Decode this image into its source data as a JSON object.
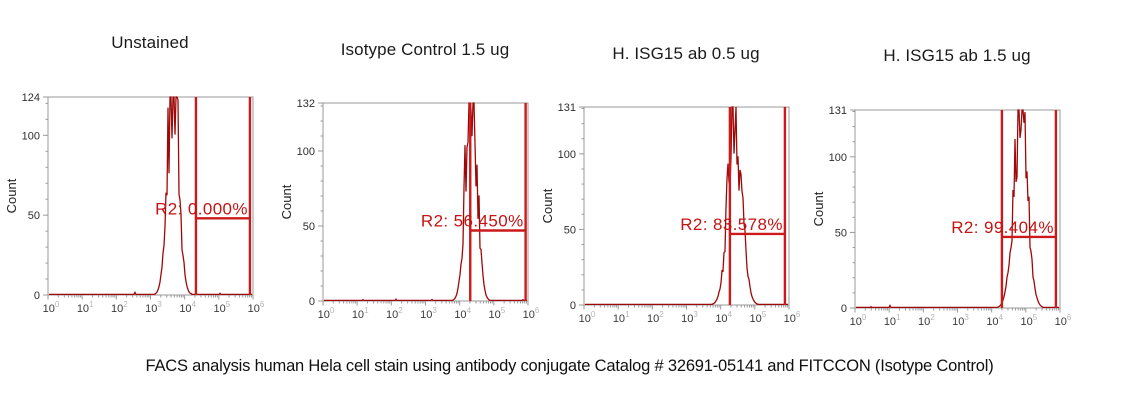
{
  "figure": {
    "caption": "FACS analysis human Hela cell stain using antibody conjugate Catalog # 32691-05141 and FITCCON (Isotype Control)"
  },
  "colors": {
    "histogram": "#9e0808",
    "gate": "#cc1a1a",
    "gate_text": "#c41414",
    "axis": "#9a9a9a",
    "tick_text": "#3a3a3a",
    "exponent_text": "#b5b5b5",
    "title_text": "#1b1b1b"
  },
  "chart_data": [
    {
      "type": "area",
      "title": "Unstained",
      "ylabel": "Count",
      "ymax": 124,
      "yticks": [
        0,
        50,
        100,
        124
      ],
      "x_scale": "log10",
      "x_range_log": [
        0,
        6
      ],
      "x_tick_base": "10",
      "x_tick_exponents": [
        0,
        1,
        2,
        3,
        4,
        5,
        6
      ],
      "grid": false,
      "peak": {
        "log_center": 3.66,
        "log_sigma": 0.16,
        "height_frac": 1.15
      },
      "gate": {
        "name": "R2",
        "percent": "0.000%",
        "label": "R2: 0.000%",
        "log_from": 4.33,
        "log_to": 5.91,
        "bar_count": 48
      },
      "seed": 11
    },
    {
      "type": "area",
      "title": "Isotype Control 1.5 ug",
      "ylabel": "Count",
      "ymax": 132,
      "yticks": [
        0,
        50,
        100,
        132
      ],
      "x_scale": "log10",
      "x_range_log": [
        0,
        6
      ],
      "x_tick_base": "10",
      "x_tick_exponents": [
        0,
        1,
        2,
        3,
        4,
        5,
        6
      ],
      "grid": false,
      "peak": {
        "log_center": 4.34,
        "log_sigma": 0.16,
        "height_frac": 1.18
      },
      "gate": {
        "name": "R2",
        "percent": "56.450%",
        "label": "R2: 56.450%",
        "log_from": 4.31,
        "log_to": 5.93,
        "bar_count": 47
      },
      "seed": 22
    },
    {
      "type": "area",
      "title": "H. ISG15 ab 0.5 ug",
      "ylabel": "Count",
      "ymax": 131,
      "yticks": [
        0,
        50,
        100,
        131
      ],
      "x_scale": "log10",
      "x_range_log": [
        0,
        6
      ],
      "x_tick_base": "10",
      "x_tick_exponents": [
        0,
        1,
        2,
        3,
        4,
        5,
        6
      ],
      "grid": false,
      "peak": {
        "log_center": 4.42,
        "log_sigma": 0.2,
        "height_frac": 0.97
      },
      "gate": {
        "name": "R2",
        "percent": "83.578%",
        "label": "R2: 83.578%",
        "log_from": 4.27,
        "log_to": 5.88,
        "bar_count": 47
      },
      "seed": 33
    },
    {
      "type": "area",
      "title": "H. ISG15 ab 1.5 ug",
      "ylabel": "Count",
      "ymax": 131,
      "yticks": [
        0,
        50,
        100,
        131
      ],
      "x_scale": "log10",
      "x_range_log": [
        0,
        6
      ],
      "x_tick_base": "10",
      "x_tick_exponents": [
        0,
        1,
        2,
        3,
        4,
        5,
        6
      ],
      "grid": false,
      "peak": {
        "log_center": 4.84,
        "log_sigma": 0.2,
        "height_frac": 0.99
      },
      "gate": {
        "name": "R2",
        "percent": "99.404%",
        "label": "R2: 99.404%",
        "log_from": 4.3,
        "log_to": 5.88,
        "bar_count": 47
      },
      "seed": 44
    }
  ]
}
